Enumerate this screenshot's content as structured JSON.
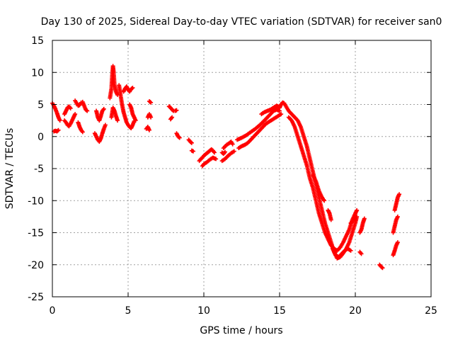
{
  "chart_data": {
    "type": "scatter",
    "title": "Day 130 of 2025, Sidereal Day-to-day VTEC variation (SDTVAR) for receiver san0",
    "xlabel": "GPS time / hours",
    "ylabel": "SDTVAR / TECUs",
    "xlim": [
      0,
      25
    ],
    "ylim": [
      -25,
      15
    ],
    "xticks": [
      0,
      5,
      10,
      15,
      20,
      25
    ],
    "yticks": [
      -25,
      -20,
      -15,
      -10,
      -5,
      0,
      5,
      10,
      15
    ],
    "grid": true,
    "legend": "none",
    "colors": {
      "points": "#ff0000",
      "axes": "#000000",
      "grid": "#a0a0a0"
    },
    "marker": "plus",
    "series": [
      {
        "name": "SDTVAR",
        "segments": [
          [
            [
              0.0,
              5.2
            ],
            [
              0.1,
              4.8
            ],
            [
              0.2,
              4.3
            ],
            [
              0.3,
              3.7
            ],
            [
              0.4,
              3.0
            ],
            [
              0.5,
              2.5
            ]
          ],
          [
            [
              0.1,
              0.8
            ],
            [
              0.2,
              0.9
            ],
            [
              0.3,
              0.8
            ],
            [
              0.4,
              1.0
            ]
          ],
          [
            [
              0.8,
              3.5
            ],
            [
              0.9,
              4.0
            ],
            [
              1.0,
              4.5
            ],
            [
              1.1,
              4.7
            ],
            [
              1.2,
              4.4
            ]
          ],
          [
            [
              0.8,
              2.5
            ],
            [
              0.9,
              2.2
            ],
            [
              1.0,
              1.8
            ],
            [
              1.1,
              1.6
            ],
            [
              1.2,
              2.0
            ],
            [
              1.3,
              2.5
            ],
            [
              1.4,
              3.0
            ],
            [
              1.5,
              3.5
            ]
          ],
          [
            [
              1.5,
              5.6
            ],
            [
              1.6,
              5.2
            ],
            [
              1.7,
              4.8
            ],
            [
              1.8,
              4.9
            ],
            [
              1.9,
              5.3
            ]
          ],
          [
            [
              1.7,
              2.2
            ],
            [
              1.8,
              1.5
            ],
            [
              1.9,
              1.0
            ],
            [
              2.0,
              0.7
            ]
          ],
          [
            [
              2.0,
              5.4
            ],
            [
              2.1,
              4.8
            ],
            [
              2.2,
              4.2
            ],
            [
              2.3,
              4.0
            ]
          ],
          [
            [
              2.9,
              4.0
            ],
            [
              3.0,
              3.0
            ],
            [
              3.1,
              2.5
            ],
            [
              3.2,
              3.2
            ],
            [
              3.3,
              4.0
            ],
            [
              3.4,
              4.3
            ]
          ],
          [
            [
              2.8,
              0.5
            ],
            [
              2.9,
              0.0
            ],
            [
              3.0,
              -0.5
            ],
            [
              3.1,
              -0.8
            ],
            [
              3.2,
              -0.3
            ],
            [
              3.3,
              0.5
            ],
            [
              3.4,
              1.2
            ],
            [
              3.5,
              1.8
            ]
          ],
          [
            [
              3.8,
              6.0
            ],
            [
              3.9,
              7.5
            ],
            [
              3.95,
              9.5
            ],
            [
              4.0,
              11.0
            ],
            [
              4.05,
              10.0
            ],
            [
              4.1,
              8.0
            ],
            [
              4.2,
              7.0
            ],
            [
              4.3,
              6.5
            ]
          ],
          [
            [
              3.9,
              3.0
            ],
            [
              4.0,
              4.5
            ],
            [
              4.1,
              4.0
            ],
            [
              4.2,
              3.2
            ],
            [
              4.3,
              2.5
            ]
          ],
          [
            [
              4.4,
              8.0
            ],
            [
              4.5,
              6.5
            ],
            [
              4.6,
              5.0
            ],
            [
              4.7,
              3.8
            ],
            [
              4.8,
              3.0
            ],
            [
              4.9,
              2.2
            ],
            [
              5.0,
              1.8
            ],
            [
              5.1,
              1.5
            ],
            [
              5.2,
              1.3
            ],
            [
              5.3,
              1.8
            ],
            [
              5.4,
              2.4
            ]
          ],
          [
            [
              4.7,
              7.0
            ],
            [
              4.8,
              7.5
            ],
            [
              4.9,
              7.8
            ],
            [
              5.0,
              7.3
            ],
            [
              5.1,
              7.0
            ],
            [
              5.2,
              7.4
            ],
            [
              5.3,
              7.6
            ]
          ],
          [
            [
              5.1,
              5.0
            ],
            [
              5.2,
              4.5
            ],
            [
              5.3,
              3.5
            ],
            [
              5.4,
              3.0
            ],
            [
              5.5,
              2.5
            ]
          ],
          [
            [
              6.4,
              5.5
            ],
            [
              6.5,
              5.3
            ]
          ],
          [
            [
              6.3,
              3.0
            ],
            [
              6.4,
              3.5
            ],
            [
              6.5,
              3.0
            ]
          ],
          [
            [
              6.2,
              1.2
            ],
            [
              6.3,
              1.5
            ],
            [
              6.4,
              1.0
            ]
          ],
          [
            [
              7.7,
              4.7
            ],
            [
              7.8,
              4.5
            ],
            [
              7.9,
              4.2
            ],
            [
              8.0,
              4.0
            ],
            [
              8.1,
              4.0
            ],
            [
              8.2,
              4.1
            ]
          ],
          [
            [
              7.8,
              2.7
            ],
            [
              7.9,
              3.0
            ]
          ],
          [
            [
              8.2,
              0.5
            ],
            [
              8.3,
              0.0
            ],
            [
              8.4,
              -0.2
            ]
          ],
          [
            [
              9.0,
              -0.5
            ],
            [
              9.1,
              -0.8
            ],
            [
              9.2,
              -1.0
            ]
          ],
          [
            [
              9.2,
              -2.2
            ],
            [
              9.3,
              -2.3
            ]
          ],
          [
            [
              9.7,
              -3.8
            ],
            [
              9.8,
              -3.5
            ],
            [
              9.9,
              -3.3
            ],
            [
              10.0,
              -3.0
            ],
            [
              10.1,
              -2.8
            ],
            [
              10.2,
              -2.6
            ],
            [
              10.3,
              -2.4
            ],
            [
              10.4,
              -2.2
            ],
            [
              10.5,
              -2.0
            ],
            [
              10.6,
              -2.2
            ],
            [
              10.7,
              -2.5
            ]
          ],
          [
            [
              9.9,
              -4.6
            ],
            [
              10.0,
              -4.3
            ],
            [
              10.2,
              -4.0
            ],
            [
              10.4,
              -3.6
            ],
            [
              10.6,
              -3.3
            ],
            [
              10.8,
              -3.5
            ]
          ],
          [
            [
              11.2,
              -3.8
            ],
            [
              11.4,
              -3.5
            ],
            [
              11.6,
              -3.0
            ],
            [
              11.8,
              -2.6
            ],
            [
              12.0,
              -2.3
            ]
          ],
          [
            [
              11.3,
              -1.8
            ],
            [
              11.5,
              -1.3
            ],
            [
              11.7,
              -1.0
            ],
            [
              11.8,
              -0.8
            ],
            [
              11.9,
              -1.2
            ]
          ],
          [
            [
              11.2,
              -2.5
            ],
            [
              11.3,
              -2.7
            ],
            [
              11.4,
              -2.4
            ]
          ],
          [
            [
              12.3,
              -1.8
            ],
            [
              12.5,
              -1.5
            ],
            [
              12.7,
              -1.3
            ],
            [
              12.9,
              -1.0
            ],
            [
              13.1,
              -0.5
            ],
            [
              13.3,
              0.0
            ],
            [
              13.5,
              0.5
            ],
            [
              13.7,
              1.0
            ],
            [
              13.9,
              1.5
            ],
            [
              14.1,
              2.0
            ],
            [
              14.3,
              2.3
            ],
            [
              14.5,
              2.6
            ],
            [
              14.7,
              2.9
            ],
            [
              14.9,
              3.2
            ],
            [
              15.1,
              3.5
            ]
          ],
          [
            [
              12.2,
              -0.5
            ],
            [
              12.5,
              -0.2
            ],
            [
              12.8,
              0.2
            ],
            [
              13.1,
              0.7
            ],
            [
              13.4,
              1.2
            ],
            [
              13.7,
              1.8
            ],
            [
              14.0,
              2.5
            ],
            [
              14.2,
              3.0
            ],
            [
              14.4,
              3.5
            ],
            [
              14.6,
              4.0
            ],
            [
              14.8,
              4.2
            ],
            [
              15.0,
              4.0
            ]
          ],
          [
            [
              13.8,
              3.5
            ],
            [
              14.0,
              3.8
            ],
            [
              14.2,
              4.0
            ],
            [
              14.4,
              4.2
            ],
            [
              14.6,
              4.5
            ],
            [
              14.8,
              4.8
            ],
            [
              15.0,
              4.6
            ]
          ],
          [
            [
              15.0,
              4.5
            ],
            [
              15.1,
              5.0
            ],
            [
              15.2,
              5.3
            ],
            [
              15.3,
              5.2
            ],
            [
              15.4,
              4.8
            ],
            [
              15.6,
              4.0
            ],
            [
              15.8,
              3.5
            ],
            [
              16.0,
              3.0
            ],
            [
              16.2,
              2.5
            ],
            [
              16.4,
              1.5
            ],
            [
              16.6,
              0.0
            ],
            [
              16.8,
              -1.5
            ],
            [
              17.0,
              -3.5
            ],
            [
              17.2,
              -5.5
            ],
            [
              17.4,
              -7.5
            ],
            [
              17.6,
              -9.5
            ],
            [
              17.8,
              -11.5
            ],
            [
              18.0,
              -13.5
            ],
            [
              18.2,
              -15.0
            ],
            [
              18.4,
              -16.5
            ],
            [
              18.6,
              -18.0
            ],
            [
              18.8,
              -19.0
            ],
            [
              19.0,
              -18.8
            ],
            [
              19.2,
              -18.2
            ],
            [
              19.4,
              -17.5
            ],
            [
              19.6,
              -16.5
            ],
            [
              19.8,
              -15.0
            ],
            [
              20.0,
              -13.5
            ],
            [
              20.1,
              -12.5
            ]
          ],
          [
            [
              15.6,
              3.0
            ],
            [
              15.8,
              2.5
            ],
            [
              16.0,
              1.5
            ],
            [
              16.2,
              0.0
            ],
            [
              16.4,
              -1.5
            ],
            [
              16.6,
              -3.0
            ],
            [
              16.8,
              -4.5
            ],
            [
              17.0,
              -6.5
            ],
            [
              17.2,
              -8.0
            ],
            [
              17.4,
              -10.0
            ],
            [
              17.6,
              -12.0
            ],
            [
              17.8,
              -13.5
            ],
            [
              18.0,
              -15.0
            ],
            [
              18.2,
              -16.0
            ],
            [
              18.4,
              -17.0
            ],
            [
              18.6,
              -17.5
            ],
            [
              18.8,
              -17.8
            ],
            [
              19.0,
              -17.3
            ],
            [
              19.2,
              -16.5
            ],
            [
              19.4,
              -15.5
            ],
            [
              19.6,
              -14.5
            ],
            [
              19.8,
              -13.0
            ],
            [
              20.0,
              -12.0
            ]
          ],
          [
            [
              17.2,
              -6.0
            ],
            [
              17.4,
              -7.0
            ],
            [
              17.6,
              -8.5
            ],
            [
              17.8,
              -9.5
            ],
            [
              17.95,
              -10.0
            ]
          ],
          [
            [
              18.2,
              -11.5
            ],
            [
              18.3,
              -12.0
            ],
            [
              18.4,
              -13.0
            ]
          ],
          [
            [
              18.5,
              -17.5
            ],
            [
              18.7,
              -18.5
            ],
            [
              18.9,
              -18.8
            ],
            [
              19.1,
              -18.3
            ],
            [
              19.3,
              -17.8
            ],
            [
              19.5,
              -17.5
            ],
            [
              19.7,
              -17.8
            ]
          ],
          [
            [
              19.7,
              -13.5
            ],
            [
              19.9,
              -13.0
            ],
            [
              20.0,
              -12.0
            ],
            [
              20.1,
              -11.5
            ]
          ],
          [
            [
              20.3,
              -15.0
            ],
            [
              20.4,
              -14.5
            ],
            [
              20.5,
              -13.5
            ],
            [
              20.6,
              -12.8
            ]
          ],
          [
            [
              20.3,
              -18.0
            ],
            [
              20.4,
              -18.3
            ]
          ],
          [
            [
              21.6,
              -20.0
            ],
            [
              21.7,
              -20.3
            ],
            [
              21.8,
              -20.5
            ]
          ],
          [
            [
              22.5,
              -18.5
            ],
            [
              22.6,
              -17.8
            ],
            [
              22.7,
              -17.0
            ],
            [
              22.8,
              -16.5
            ]
          ],
          [
            [
              22.5,
              -15.0
            ],
            [
              22.6,
              -14.0
            ],
            [
              22.7,
              -13.0
            ],
            [
              22.8,
              -12.5
            ]
          ],
          [
            [
              22.6,
              -11.5
            ],
            [
              22.7,
              -10.5
            ],
            [
              22.8,
              -9.5
            ],
            [
              22.9,
              -9.0
            ]
          ]
        ]
      }
    ]
  }
}
